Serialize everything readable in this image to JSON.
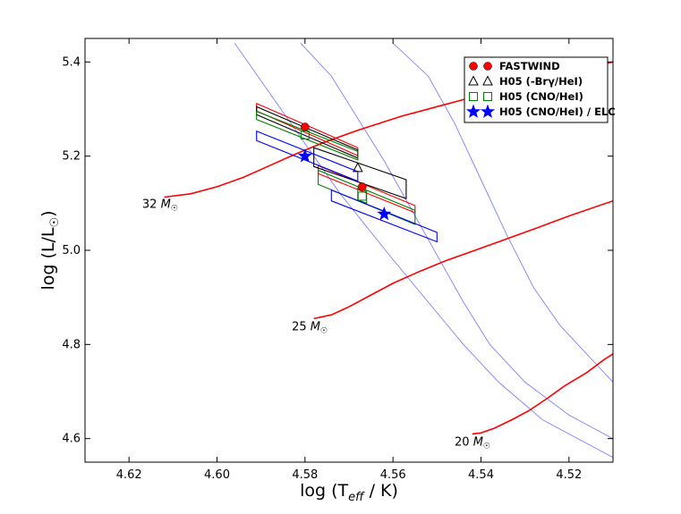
{
  "chart_data": {
    "type": "scatter",
    "title": "",
    "xlabel": "log (T_eff / K)",
    "ylabel": "log (L/L☉)",
    "xlim": [
      4.63,
      4.51
    ],
    "ylim": [
      4.55,
      5.45
    ],
    "x_reversed": true,
    "x_ticks": [
      "4.62",
      "4.60",
      "4.58",
      "4.56",
      "4.54",
      "4.52"
    ],
    "y_ticks": [
      "4.6",
      "4.8",
      "5.0",
      "5.2",
      "5.4"
    ],
    "grid": false,
    "legend_position": "top-right",
    "colors": {
      "track": "#ff0000",
      "isochrone": "#8080ff",
      "fastwind": "#ff0000",
      "h05_br": "#000000",
      "h05_cno": "#008000",
      "h05_elc": "#0000ff"
    },
    "evolutionary_tracks": [
      {
        "label": "32",
        "points": [
          [
            4.612,
            5.113
          ],
          [
            4.606,
            5.12
          ],
          [
            4.6,
            5.135
          ],
          [
            4.594,
            5.155
          ],
          [
            4.588,
            5.18
          ],
          [
            4.582,
            5.205
          ],
          [
            4.576,
            5.228
          ],
          [
            4.568,
            5.255
          ],
          [
            4.558,
            5.285
          ],
          [
            4.548,
            5.31
          ],
          [
            4.538,
            5.335
          ],
          [
            4.528,
            5.36
          ],
          [
            4.518,
            5.385
          ],
          [
            4.51,
            5.4
          ]
        ]
      },
      {
        "label": "25",
        "points": [
          [
            4.578,
            4.855
          ],
          [
            4.574,
            4.863
          ],
          [
            4.57,
            4.88
          ],
          [
            4.565,
            4.905
          ],
          [
            4.56,
            4.93
          ],
          [
            4.554,
            4.955
          ],
          [
            4.548,
            4.978
          ],
          [
            4.542,
            4.998
          ],
          [
            4.536,
            5.018
          ],
          [
            4.528,
            5.045
          ],
          [
            4.52,
            5.073
          ],
          [
            4.51,
            5.105
          ]
        ]
      },
      {
        "label": "20",
        "points": [
          [
            4.542,
            4.61
          ],
          [
            4.54,
            4.612
          ],
          [
            4.537,
            4.622
          ],
          [
            4.533,
            4.64
          ],
          [
            4.529,
            4.66
          ],
          [
            4.525,
            4.685
          ],
          [
            4.521,
            4.712
          ],
          [
            4.516,
            4.74
          ],
          [
            4.512,
            4.768
          ],
          [
            4.51,
            4.78
          ]
        ]
      }
    ],
    "isochrones": [
      [
        [
          4.596,
          5.44
        ],
        [
          4.59,
          5.36
        ],
        [
          4.584,
          5.28
        ],
        [
          4.578,
          5.2
        ],
        [
          4.572,
          5.12
        ],
        [
          4.566,
          5.05
        ],
        [
          4.56,
          4.98
        ],
        [
          4.552,
          4.89
        ],
        [
          4.544,
          4.8
        ],
        [
          4.536,
          4.72
        ],
        [
          4.526,
          4.64
        ],
        [
          4.51,
          4.56
        ]
      ],
      [
        [
          4.581,
          5.44
        ],
        [
          4.574,
          5.37
        ],
        [
          4.568,
          5.28
        ],
        [
          4.562,
          5.19
        ],
        [
          4.556,
          5.09
        ],
        [
          4.55,
          4.99
        ],
        [
          4.544,
          4.89
        ],
        [
          4.538,
          4.8
        ],
        [
          4.53,
          4.72
        ],
        [
          4.52,
          4.65
        ],
        [
          4.51,
          4.6
        ]
      ],
      [
        [
          4.56,
          5.44
        ],
        [
          4.552,
          5.37
        ],
        [
          4.546,
          5.27
        ],
        [
          4.54,
          5.15
        ],
        [
          4.534,
          5.03
        ],
        [
          4.528,
          4.92
        ],
        [
          4.522,
          4.84
        ],
        [
          4.51,
          4.72
        ]
      ]
    ],
    "fastwind": [
      {
        "x": 4.58,
        "y": 5.262
      },
      {
        "x": 4.567,
        "y": 5.135
      }
    ],
    "h05_br": [
      {
        "x": 4.568,
        "y": 5.175
      }
    ],
    "h05_cno": [
      {
        "x": 4.58,
        "y": 5.245
      },
      {
        "x": 4.567,
        "y": 5.115
      }
    ],
    "h05_elc": [
      {
        "x": 4.58,
        "y": 5.2
      },
      {
        "x": 4.562,
        "y": 5.077
      }
    ],
    "error_boxes": [
      {
        "color": "red",
        "corners": [
          [
            4.591,
            5.312
          ],
          [
            4.568,
            5.218
          ],
          [
            4.568,
            5.201
          ],
          [
            4.591,
            5.296
          ]
        ]
      },
      {
        "color": "red",
        "corners": [
          [
            4.577,
            5.18
          ],
          [
            4.555,
            5.095
          ],
          [
            4.555,
            5.08
          ],
          [
            4.577,
            5.163
          ]
        ]
      },
      {
        "color": "black",
        "corners": [
          [
            4.591,
            5.305
          ],
          [
            4.568,
            5.213
          ],
          [
            4.568,
            5.196
          ],
          [
            4.591,
            5.288
          ]
        ]
      },
      {
        "color": "black",
        "corners": [
          [
            4.578,
            5.218
          ],
          [
            4.557,
            5.15
          ],
          [
            4.557,
            5.11
          ],
          [
            4.578,
            5.178
          ]
        ]
      },
      {
        "color": "green",
        "corners": [
          [
            4.591,
            5.295
          ],
          [
            4.568,
            5.21
          ],
          [
            4.568,
            5.192
          ],
          [
            4.591,
            5.278
          ]
        ]
      },
      {
        "color": "green",
        "corners": [
          [
            4.577,
            5.17
          ],
          [
            4.555,
            5.085
          ],
          [
            4.555,
            5.055
          ],
          [
            4.577,
            5.14
          ]
        ]
      },
      {
        "color": "green",
        "corners": [
          [
            4.568,
            5.132
          ],
          [
            4.566,
            5.125
          ],
          [
            4.566,
            5.1
          ],
          [
            4.568,
            5.107
          ]
        ]
      },
      {
        "color": "blue",
        "corners": [
          [
            4.591,
            5.253
          ],
          [
            4.568,
            5.167
          ],
          [
            4.568,
            5.147
          ],
          [
            4.591,
            5.233
          ]
        ]
      },
      {
        "color": "blue",
        "corners": [
          [
            4.574,
            5.128
          ],
          [
            4.55,
            5.038
          ],
          [
            4.55,
            5.018
          ],
          [
            4.574,
            5.105
          ]
        ]
      }
    ],
    "mass_labels": [
      {
        "text": "32",
        "x": 4.617,
        "y": 5.09
      },
      {
        "text": "25",
        "x": 4.583,
        "y": 4.83
      },
      {
        "text": "20",
        "x": 4.546,
        "y": 4.585
      }
    ],
    "mass_unit": "M☉",
    "legend": [
      {
        "label": "FASTWIND",
        "marker": "circle",
        "color": "#ff0000"
      },
      {
        "label": "H05 (-Brγ/HeI)",
        "marker": "triangle",
        "color": "#000000"
      },
      {
        "label": "H05 (CNO/HeI)",
        "marker": "square",
        "color": "#008000"
      },
      {
        "label": "H05 (CNO/HeI) / ELC",
        "marker": "star",
        "color": "#0000ff"
      }
    ]
  }
}
